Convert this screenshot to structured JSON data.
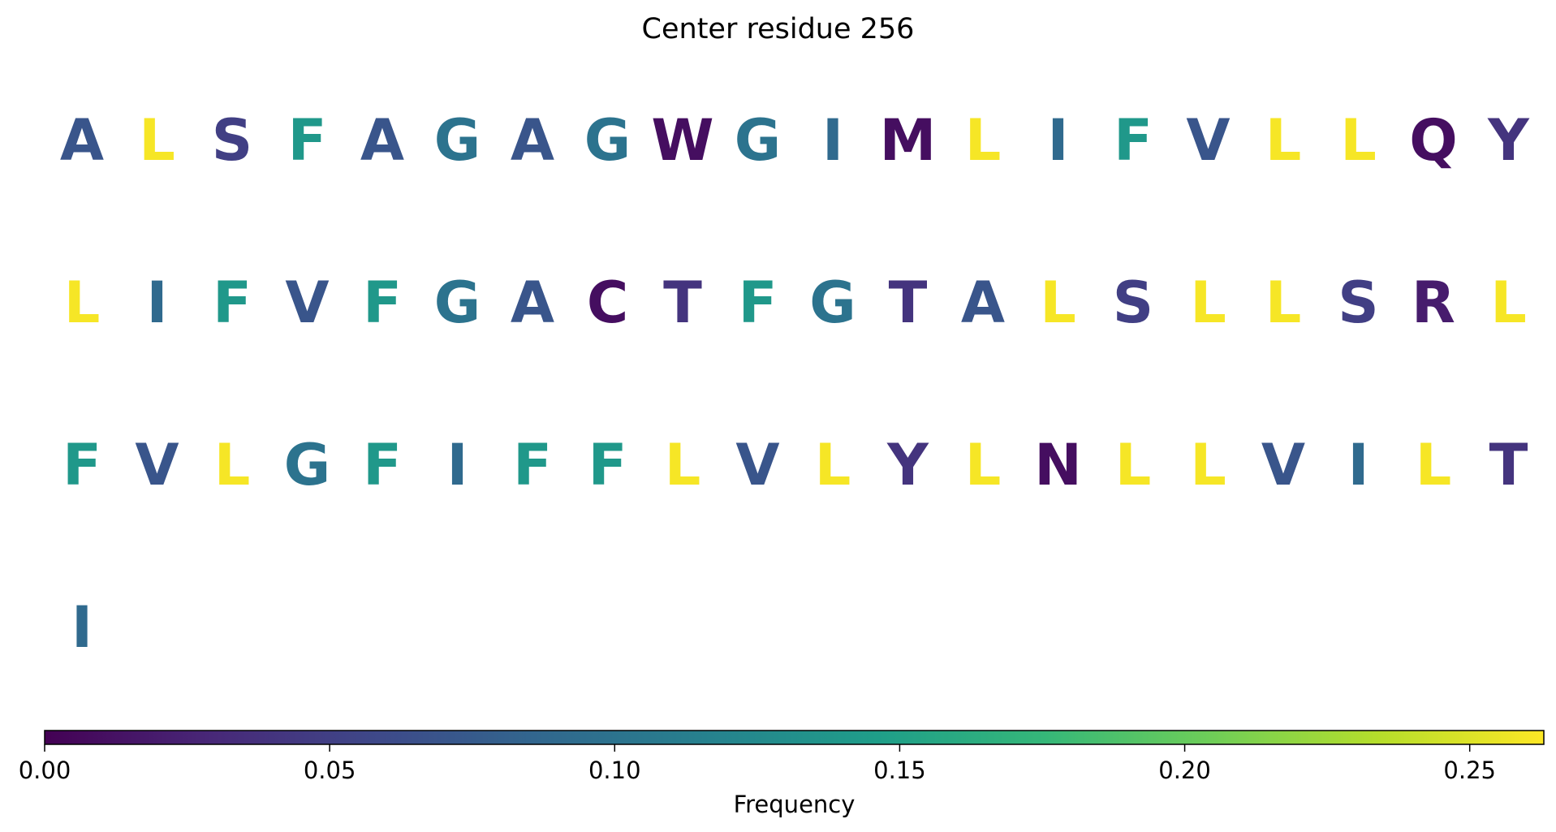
{
  "chart_data": {
    "type": "sequence-logo",
    "title": "Center residue 256",
    "colorbar": {
      "label": "Frequency",
      "range": [
        0,
        0.263
      ],
      "ticks": [
        "0.00",
        "0.05",
        "0.10",
        "0.15",
        "0.20",
        "0.25"
      ],
      "tick_values": [
        0,
        0.05,
        0.1,
        0.15,
        0.2,
        0.25
      ],
      "colormap": "viridis",
      "colormap_stops": [
        "#440154",
        "#482878",
        "#3e4989",
        "#31688e",
        "#26828e",
        "#1f9e89",
        "#35b779",
        "#6ece58",
        "#b5de2b",
        "#fde725"
      ]
    },
    "rows": [
      [
        {
          "residue": "A",
          "frequency": 0.07
        },
        {
          "residue": "L",
          "frequency": 0.26
        },
        {
          "residue": "S",
          "frequency": 0.05
        },
        {
          "residue": "F",
          "frequency": 0.14
        },
        {
          "residue": "A",
          "frequency": 0.07
        },
        {
          "residue": "G",
          "frequency": 0.1
        },
        {
          "residue": "A",
          "frequency": 0.07
        },
        {
          "residue": "G",
          "frequency": 0.1
        },
        {
          "residue": "W",
          "frequency": 0.01
        },
        {
          "residue": "G",
          "frequency": 0.1
        },
        {
          "residue": "I",
          "frequency": 0.09
        },
        {
          "residue": "M",
          "frequency": 0.01
        },
        {
          "residue": "L",
          "frequency": 0.26
        },
        {
          "residue": "I",
          "frequency": 0.09
        },
        {
          "residue": "F",
          "frequency": 0.14
        },
        {
          "residue": "V",
          "frequency": 0.07
        },
        {
          "residue": "L",
          "frequency": 0.26
        },
        {
          "residue": "L",
          "frequency": 0.26
        },
        {
          "residue": "Q",
          "frequency": 0.01
        },
        {
          "residue": "Y",
          "frequency": 0.04
        }
      ],
      [
        {
          "residue": "L",
          "frequency": 0.26
        },
        {
          "residue": "I",
          "frequency": 0.09
        },
        {
          "residue": "F",
          "frequency": 0.14
        },
        {
          "residue": "V",
          "frequency": 0.07
        },
        {
          "residue": "F",
          "frequency": 0.14
        },
        {
          "residue": "G",
          "frequency": 0.1
        },
        {
          "residue": "A",
          "frequency": 0.07
        },
        {
          "residue": "C",
          "frequency": 0.01
        },
        {
          "residue": "T",
          "frequency": 0.04
        },
        {
          "residue": "F",
          "frequency": 0.14
        },
        {
          "residue": "G",
          "frequency": 0.1
        },
        {
          "residue": "T",
          "frequency": 0.04
        },
        {
          "residue": "A",
          "frequency": 0.07
        },
        {
          "residue": "L",
          "frequency": 0.26
        },
        {
          "residue": "S",
          "frequency": 0.05
        },
        {
          "residue": "L",
          "frequency": 0.26
        },
        {
          "residue": "L",
          "frequency": 0.26
        },
        {
          "residue": "S",
          "frequency": 0.05
        },
        {
          "residue": "R",
          "frequency": 0.02
        },
        {
          "residue": "L",
          "frequency": 0.26
        }
      ],
      [
        {
          "residue": "F",
          "frequency": 0.14
        },
        {
          "residue": "V",
          "frequency": 0.07
        },
        {
          "residue": "L",
          "frequency": 0.26
        },
        {
          "residue": "G",
          "frequency": 0.1
        },
        {
          "residue": "F",
          "frequency": 0.14
        },
        {
          "residue": "I",
          "frequency": 0.09
        },
        {
          "residue": "F",
          "frequency": 0.14
        },
        {
          "residue": "F",
          "frequency": 0.14
        },
        {
          "residue": "L",
          "frequency": 0.26
        },
        {
          "residue": "V",
          "frequency": 0.07
        },
        {
          "residue": "L",
          "frequency": 0.26
        },
        {
          "residue": "Y",
          "frequency": 0.04
        },
        {
          "residue": "L",
          "frequency": 0.26
        },
        {
          "residue": "N",
          "frequency": 0.01
        },
        {
          "residue": "L",
          "frequency": 0.26
        },
        {
          "residue": "L",
          "frequency": 0.26
        },
        {
          "residue": "V",
          "frequency": 0.07
        },
        {
          "residue": "I",
          "frequency": 0.09
        },
        {
          "residue": "L",
          "frequency": 0.26
        },
        {
          "residue": "T",
          "frequency": 0.04
        }
      ],
      [
        {
          "residue": "I",
          "frequency": 0.09
        }
      ]
    ]
  }
}
